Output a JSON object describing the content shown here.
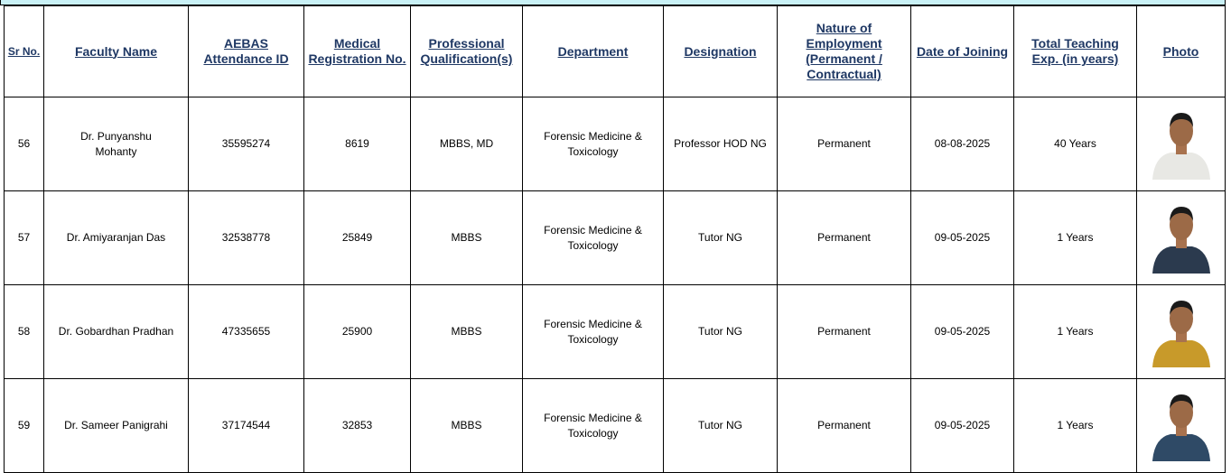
{
  "table": {
    "headers": [
      "Sr No.",
      "Faculty Name",
      "AEBAS Attendance ID",
      "Medical Registration No.",
      "Professional Qualification(s)",
      "Department",
      "Designation",
      "Nature of Employment (Permanent / Contractual)",
      "Date of Joining",
      "Total Teaching Exp. (in years)",
      "Photo"
    ],
    "rows": [
      [
        "56",
        "Dr. Punyanshu Mohanty",
        "35595274",
        "8619",
        "MBBS, MD",
        "Forensic Medicine & Toxicology",
        "Professor HOD NG",
        "Permanent",
        "08-08-2025",
        "40 Years"
      ],
      [
        "57",
        "Dr. Amiyaranjan Das",
        "32538778",
        "25849",
        "MBBS",
        "Forensic Medicine & Toxicology",
        "Tutor NG",
        "Permanent",
        "09-05-2025",
        "1 Years"
      ],
      [
        "58",
        "Dr. Gobardhan Pradhan",
        "47335655",
        "25900",
        "MBBS",
        "Forensic Medicine & Toxicology",
        "Tutor NG",
        "Permanent",
        "09-05-2025",
        "1 Years"
      ],
      [
        "59",
        "Dr. Sameer Panigrahi",
        "37174544",
        "32853",
        "MBBS",
        "Forensic Medicine & Toxicology",
        "Tutor NG",
        "Permanent",
        "09-05-2025",
        "1 Years"
      ]
    ]
  }
}
